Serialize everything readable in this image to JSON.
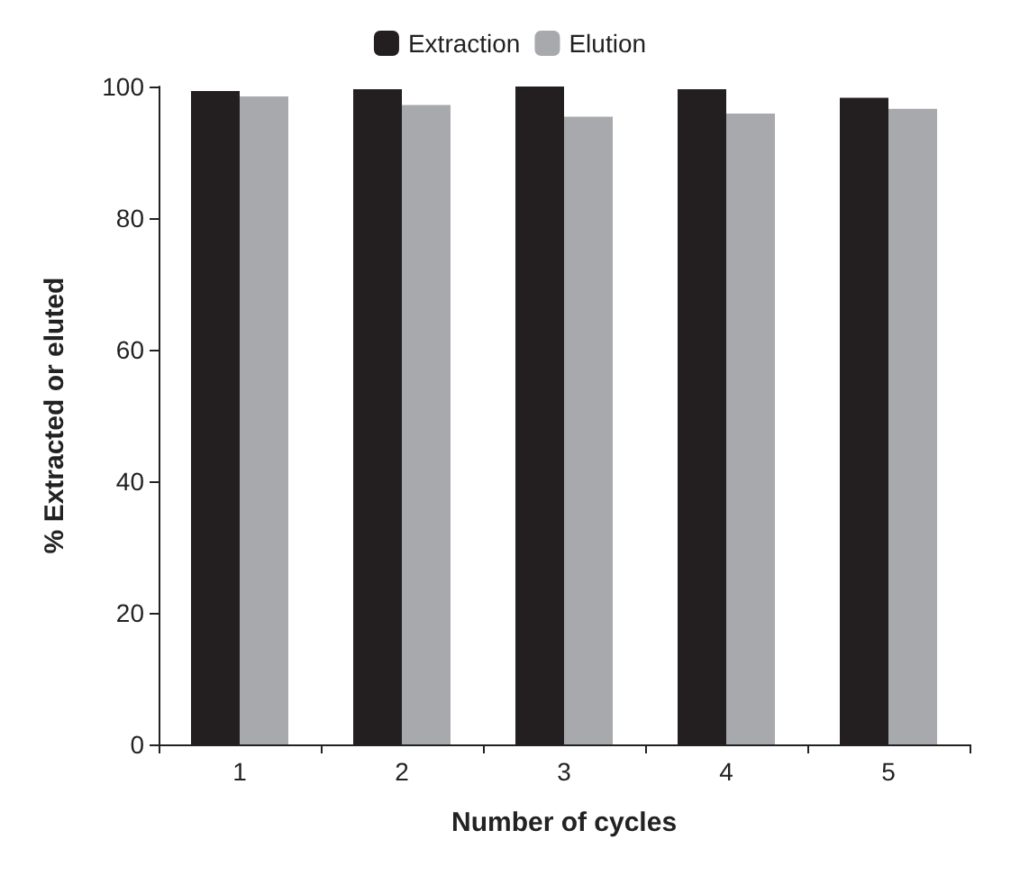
{
  "chart_data": {
    "type": "bar",
    "xlabel": "Number of cycles",
    "ylabel": "% Extracted or eluted",
    "categories": [
      "1",
      "2",
      "3",
      "4",
      "5"
    ],
    "series": [
      {
        "name": "Extraction",
        "color": "#231f20",
        "values": [
          99.3,
          99.6,
          100,
          99.6,
          98.3
        ]
      },
      {
        "name": "Elution",
        "color": "#a7a9ac",
        "values": [
          98.5,
          97.2,
          95.4,
          95.9,
          96.6
        ]
      }
    ],
    "ylim": [
      0,
      100
    ],
    "yticks": [
      0,
      20,
      40,
      60,
      80,
      100
    ],
    "grid": false,
    "legend": "top"
  }
}
